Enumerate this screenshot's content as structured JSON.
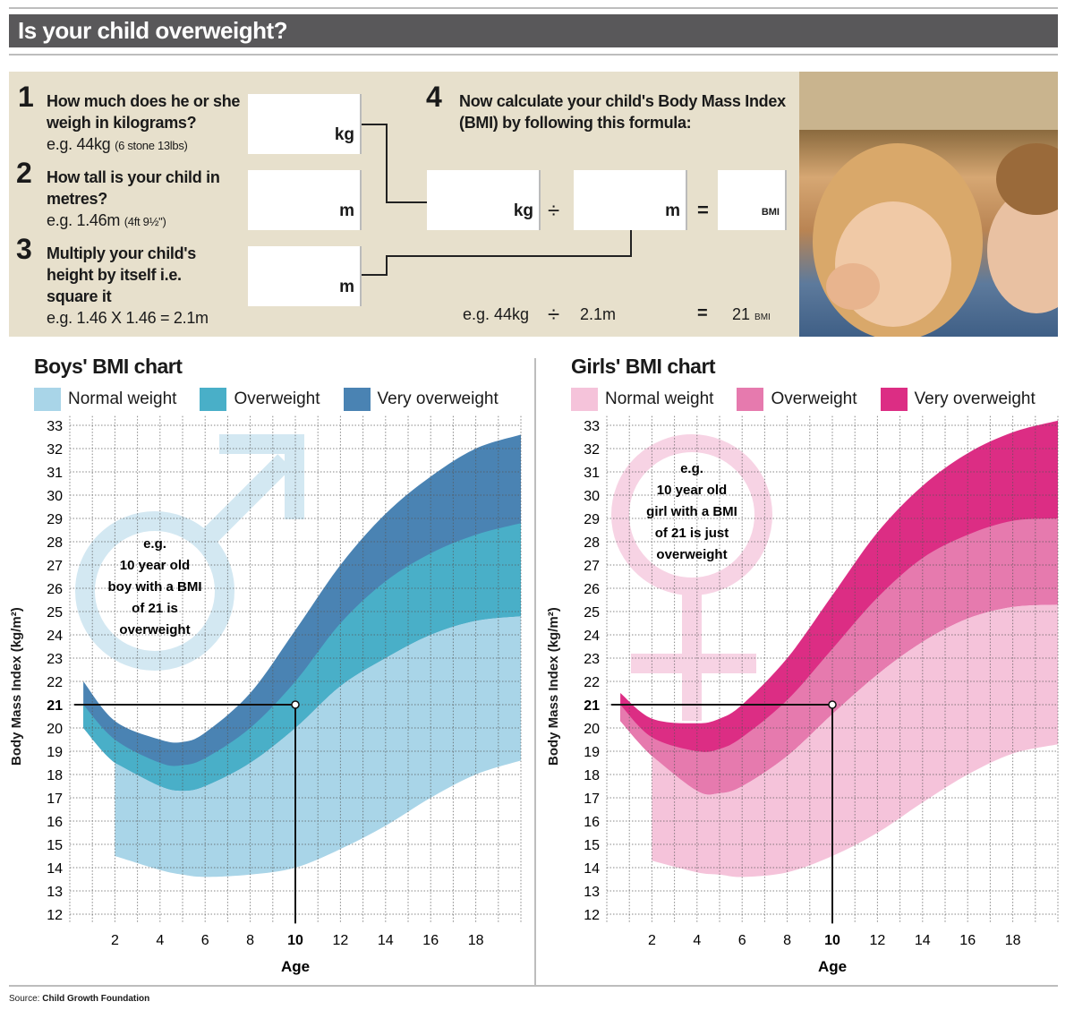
{
  "title": "Is your child overweight?",
  "steps": [
    {
      "num": "1",
      "question": "How much does he or she weigh in kilograms?",
      "example": "e.g. 44kg",
      "example_note": "(6 stone 13lbs)",
      "unit": "kg"
    },
    {
      "num": "2",
      "question": "How tall is your child in metres?",
      "example": "e.g. 1.46m",
      "example_note": "(4ft 9½\")",
      "unit": "m"
    },
    {
      "num": "3",
      "question": "Multiply your child's height by itself i.e. square it",
      "example": "e.g. 1.46 X 1.46 = 2.1m",
      "unit": "m"
    },
    {
      "num": "4",
      "question": "Now calculate your child's Body Mass Index (BMI) by following this formula:"
    }
  ],
  "formula": {
    "unit_kg": "kg",
    "divide": "÷",
    "unit_m": "m",
    "equals": "=",
    "unit_bmi": "BMI",
    "example_kg": "e.g. 44kg",
    "example_m": "2.1m",
    "example_bmi": "21",
    "example_bmi_unit": "BMI"
  },
  "source_label": "Source:",
  "source": "Child Growth Foundation",
  "chart_data": [
    {
      "type": "area",
      "title": "Boys' BMI chart",
      "xlabel": "Age",
      "ylabel": "Body Mass Index (kg/m²)",
      "xlim": [
        0,
        20
      ],
      "ylim": [
        12,
        33
      ],
      "xticks": [
        2,
        4,
        6,
        8,
        10,
        12,
        14,
        16,
        18
      ],
      "yticks": [
        33,
        32,
        31,
        30,
        29,
        28,
        27,
        26,
        25,
        24,
        23,
        22,
        21,
        20,
        19,
        18,
        17,
        16,
        15,
        14,
        13,
        12
      ],
      "grid": true,
      "legend": [
        "Normal weight",
        "Overweight",
        "Very overweight"
      ],
      "legend_placement": "top",
      "colors": {
        "normal": "#a9d5e8",
        "overweight": "#49afc8",
        "very": "#4a83b3",
        "symbol": "#d3e8f2"
      },
      "annotation": [
        "e.g.",
        "10 year old",
        "boy with a BMI",
        "of 21 is",
        "overweight"
      ],
      "highlight": {
        "age": 10,
        "bmi": 21
      },
      "age": [
        0.6,
        2,
        4,
        5,
        6,
        8,
        10,
        12,
        14,
        16,
        18,
        20
      ],
      "normal_lower": [
        null,
        14.5,
        13.9,
        13.7,
        13.6,
        13.7,
        14.0,
        14.8,
        15.8,
        17.0,
        18.0,
        18.6
      ],
      "normal_upper": [
        20.0,
        18.5,
        17.5,
        17.3,
        17.5,
        18.5,
        20.0,
        21.8,
        23.0,
        24.0,
        24.6,
        24.8
      ],
      "overweight_upper": [
        21.0,
        19.5,
        18.5,
        18.4,
        18.7,
        20.0,
        22.0,
        24.5,
        26.3,
        27.5,
        28.3,
        28.8
      ],
      "very_overweight_upper": [
        22.0,
        20.3,
        19.5,
        19.4,
        19.8,
        21.5,
        24.2,
        27.0,
        29.2,
        30.8,
        32.0,
        32.6
      ]
    },
    {
      "type": "area",
      "title": "Girls' BMI chart",
      "xlabel": "Age",
      "ylabel": "Body Mass Index (kg/m²)",
      "xlim": [
        0,
        20
      ],
      "ylim": [
        12,
        33
      ],
      "xticks": [
        2,
        4,
        6,
        8,
        10,
        12,
        14,
        16,
        18
      ],
      "yticks": [
        33,
        32,
        31,
        30,
        29,
        28,
        27,
        26,
        25,
        24,
        23,
        22,
        21,
        20,
        19,
        18,
        17,
        16,
        15,
        14,
        13,
        12
      ],
      "grid": true,
      "legend": [
        "Normal weight",
        "Overweight",
        "Very overweight"
      ],
      "legend_placement": "top",
      "colors": {
        "normal": "#f5c3da",
        "overweight": "#e67aae",
        "very": "#dc2d84",
        "symbol": "#f7d3e4"
      },
      "annotation": [
        "e.g.",
        "10 year old",
        "girl with a BMI",
        "of 21 is just",
        "overweight"
      ],
      "highlight": {
        "age": 10,
        "bmi": 21
      },
      "age": [
        0.6,
        2,
        4,
        5,
        6,
        8,
        10,
        12,
        14,
        16,
        18,
        20
      ],
      "normal_lower": [
        null,
        14.3,
        13.8,
        13.7,
        13.6,
        13.8,
        14.5,
        15.5,
        16.8,
        18.0,
        18.9,
        19.3
      ],
      "normal_upper": [
        20.3,
        18.8,
        17.3,
        17.2,
        17.5,
        18.8,
        20.6,
        22.3,
        23.7,
        24.7,
        25.2,
        25.3
      ],
      "overweight_upper": [
        21.0,
        19.6,
        19.0,
        19.1,
        19.6,
        21.2,
        23.4,
        25.6,
        27.3,
        28.3,
        28.9,
        29.0
      ],
      "very_overweight_upper": [
        21.5,
        20.4,
        20.2,
        20.4,
        21.0,
        23.0,
        25.7,
        28.4,
        30.4,
        31.8,
        32.7,
        33.2
      ]
    }
  ]
}
